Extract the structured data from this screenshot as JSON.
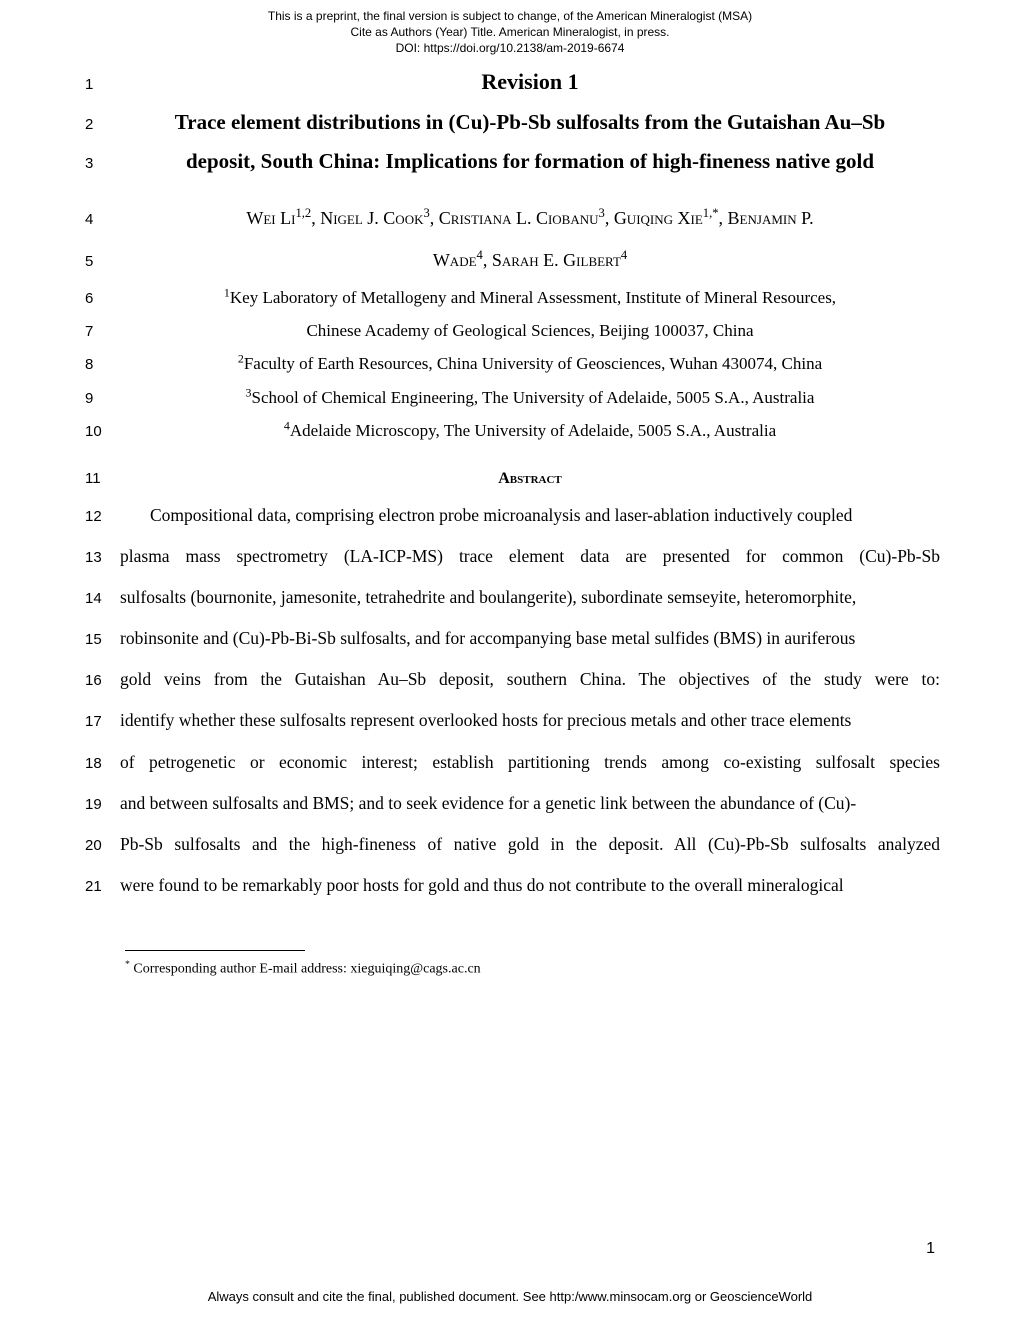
{
  "header": {
    "line1": "This is a preprint, the final version is subject to change, of the American Mineralogist (MSA)",
    "line2": "Cite as Authors (Year) Title. American Mineralogist, in press.",
    "line3": "DOI: https://doi.org/10.2138/am-2019-6674"
  },
  "lines": {
    "l1": "1",
    "l2": "2",
    "l3": "3",
    "l4": "4",
    "l5": "5",
    "l6": "6",
    "l7": "7",
    "l8": "8",
    "l9": "9",
    "l10": "10",
    "l11": "11",
    "l12": "12",
    "l13": "13",
    "l14": "14",
    "l15": "15",
    "l16": "16",
    "l17": "17",
    "l18": "18",
    "l19": "19",
    "l20": "20",
    "l21": "21"
  },
  "revision": "Revision 1",
  "title": {
    "part1": "Trace element distributions in (Cu)-Pb-Sb sulfosalts from the Gutaishan Au–Sb",
    "part2": "deposit, South China: Implications for formation of high-fineness native gold"
  },
  "authors": {
    "part1_pre": "Wei Li",
    "part1_sup": "1,2",
    "part1_a": ", Nigel J. Cook",
    "part1_sup2": "3",
    "part1_b": ", Cristiana L. Ciobanu",
    "part1_sup3": "3",
    "part1_c": ", Guiqing Xie",
    "part1_sup4": "1,*",
    "part1_d": ", Benjamin P.",
    "part2_a": "Wade",
    "part2_sup1": "4",
    "part2_b": ", Sarah E. Gilbert",
    "part2_sup2": "4"
  },
  "affiliations": {
    "a1_sup": "1",
    "a1a": "Key Laboratory of Metallogeny and Mineral Assessment, Institute of Mineral Resources,",
    "a1b": "Chinese Academy of Geological Sciences, Beijing 100037, China",
    "a2_sup": "2",
    "a2": "Faculty of Earth Resources, China University of Geosciences, Wuhan 430074, China",
    "a3_sup": "3",
    "a3": "School of Chemical Engineering, The University of Adelaide, 5005 S.A., Australia",
    "a4_sup": "4",
    "a4": "Adelaide Microscopy, The University of Adelaide, 5005 S.A., Australia"
  },
  "abstract_heading": "Abstract",
  "abstract": {
    "p12": "Compositional data, comprising electron probe microanalysis and laser-ablation inductively coupled",
    "p13": "plasma mass spectrometry (LA-ICP-MS) trace element data are presented for common (Cu)-Pb-Sb",
    "p14": "sulfosalts (bournonite, jamesonite, tetrahedrite and boulangerite), subordinate semseyite, heteromorphite,",
    "p15": "robinsonite and (Cu)-Pb-Bi-Sb sulfosalts, and for accompanying base metal sulfides (BMS) in auriferous",
    "p16": "gold veins from the Gutaishan Au–Sb deposit, southern China. The objectives of the study were to:",
    "p17": "identify whether these sulfosalts represent overlooked hosts for precious metals and other trace elements",
    "p18": "of petrogenetic or economic interest; establish partitioning trends among co-existing sulfosalt species",
    "p19": "and between sulfosalts and BMS; and to seek evidence for a genetic link between the abundance of (Cu)-",
    "p20": "Pb-Sb sulfosalts and the high-fineness of native gold in the deposit. All (Cu)-Pb-Sb sulfosalts analyzed",
    "p21": "were found to be remarkably poor hosts for gold and thus do not contribute to the overall mineralogical"
  },
  "footnote": {
    "marker": "*",
    "text": " Corresponding author E-mail address: xieguiqing@cags.ac.cn"
  },
  "page_number": "1",
  "footer": "Always consult and cite the final, published document. See http:/www.minsocam.org or GeoscienceWorld"
}
